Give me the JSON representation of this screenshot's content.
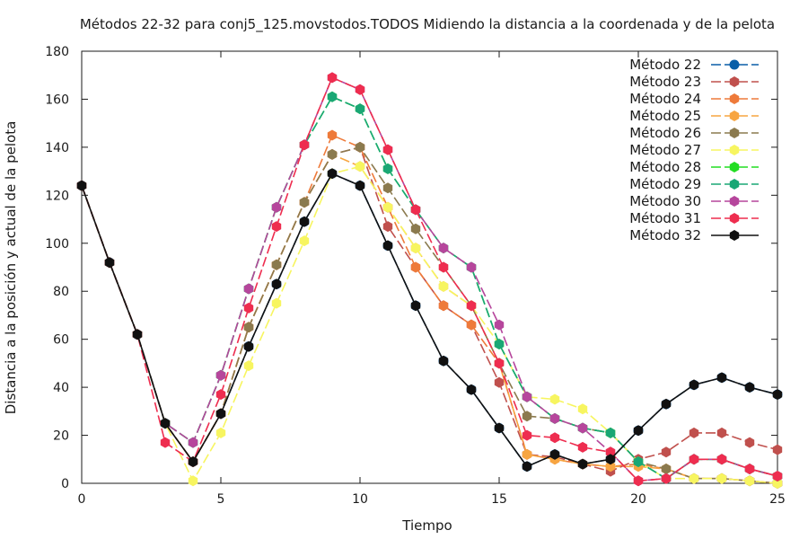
{
  "chart_data": {
    "type": "line",
    "title": "Métodos 22-32 para conj5_125.movstodos.TODOS Midiendo la distancia a la coordenada y de la pelota",
    "xlabel": "Tiempo",
    "ylabel": "Distancia a la posición y actual de la pelota",
    "xlim": [
      0,
      25
    ],
    "ylim": [
      0,
      180
    ],
    "xticks": [
      0,
      5,
      10,
      15,
      20,
      25
    ],
    "yticks": [
      0,
      20,
      40,
      60,
      80,
      100,
      120,
      140,
      160,
      180
    ],
    "grid": false,
    "legend_position": "top-right",
    "x": [
      0,
      1,
      2,
      3,
      4,
      5,
      6,
      7,
      8,
      9,
      10,
      11,
      12,
      13,
      14,
      15,
      16,
      17,
      18,
      19,
      20,
      21,
      22,
      23,
      24,
      25
    ],
    "series": [
      {
        "name": "Método 22",
        "color": "#0a5fa8",
        "marker": "circle",
        "values": [
          124,
          92,
          62,
          25,
          9,
          29,
          57,
          83,
          109,
          129,
          124,
          99,
          74,
          51,
          39,
          23,
          7,
          12,
          8,
          10,
          22,
          33,
          41,
          44,
          40,
          37
        ]
      },
      {
        "name": "Método 23",
        "color": "#c0504d",
        "marker": "hexagon",
        "values": [
          124,
          92,
          62,
          25,
          9,
          29,
          65,
          91,
          117,
          137,
          140,
          107,
          90,
          74,
          66,
          42,
          12,
          11,
          8,
          5,
          10,
          13,
          21,
          21,
          17,
          14
        ]
      },
      {
        "name": "Método 24",
        "color": "#ee7a3a",
        "marker": "hexagon",
        "values": [
          124,
          92,
          62,
          25,
          9,
          29,
          65,
          91,
          117,
          145,
          140,
          115,
          90,
          74,
          66,
          50,
          12,
          10,
          8,
          7,
          8,
          6,
          2,
          2,
          1,
          0
        ]
      },
      {
        "name": "Método 25",
        "color": "#f7a541",
        "marker": "hexagon",
        "values": [
          124,
          92,
          62,
          25,
          9,
          29,
          65,
          91,
          117,
          137,
          132,
          115,
          98,
          82,
          74,
          50,
          12,
          10,
          8,
          7,
          7,
          6,
          2,
          2,
          1,
          0
        ]
      },
      {
        "name": "Método 26",
        "color": "#8b7a4e",
        "marker": "hexagon",
        "values": [
          124,
          92,
          62,
          25,
          9,
          29,
          65,
          91,
          117,
          137,
          140,
          123,
          106,
          90,
          74,
          50,
          28,
          27,
          23,
          21,
          9,
          6,
          2,
          2,
          1,
          0
        ]
      },
      {
        "name": "Método 27",
        "color": "#f7f560",
        "marker": "hexagon",
        "values": [
          124,
          92,
          62,
          25,
          1,
          21,
          49,
          75,
          101,
          129,
          132,
          115,
          98,
          82,
          74,
          58,
          36,
          35,
          31,
          21,
          9,
          2,
          2,
          2,
          1,
          0
        ]
      },
      {
        "name": "Método 28",
        "color": "#22dd22",
        "marker": "hexagon",
        "values": [
          124,
          92,
          62,
          25,
          17,
          45,
          81,
          115,
          141,
          161,
          156,
          131,
          114,
          98,
          90,
          58,
          36,
          27,
          23,
          21,
          9,
          2,
          10,
          10,
          6,
          3
        ]
      },
      {
        "name": "Método 29",
        "color": "#1aa775",
        "marker": "hexagon",
        "values": [
          124,
          92,
          62,
          25,
          17,
          45,
          81,
          115,
          141,
          161,
          156,
          131,
          114,
          98,
          90,
          58,
          36,
          27,
          23,
          21,
          9,
          2,
          10,
          10,
          6,
          3
        ]
      },
      {
        "name": "Método 30",
        "color": "#b6469c",
        "marker": "hexagon",
        "values": [
          124,
          92,
          62,
          25,
          17,
          45,
          81,
          115,
          141,
          169,
          164,
          139,
          114,
          98,
          90,
          66,
          36,
          27,
          23,
          13,
          1,
          2,
          10,
          10,
          6,
          3
        ]
      },
      {
        "name": "Método 31",
        "color": "#ee2d4f",
        "marker": "hexagon",
        "values": [
          124,
          92,
          62,
          17,
          9,
          37,
          73,
          107,
          141,
          169,
          164,
          139,
          114,
          90,
          74,
          50,
          20,
          19,
          15,
          13,
          1,
          2,
          10,
          10,
          6,
          3
        ]
      },
      {
        "name": "Método 32",
        "color": "#111111",
        "marker": "hexagon",
        "values": [
          124,
          92,
          62,
          25,
          9,
          29,
          57,
          83,
          109,
          129,
          124,
          99,
          74,
          51,
          39,
          23,
          7,
          12,
          8,
          10,
          22,
          33,
          41,
          44,
          40,
          37
        ]
      }
    ]
  }
}
